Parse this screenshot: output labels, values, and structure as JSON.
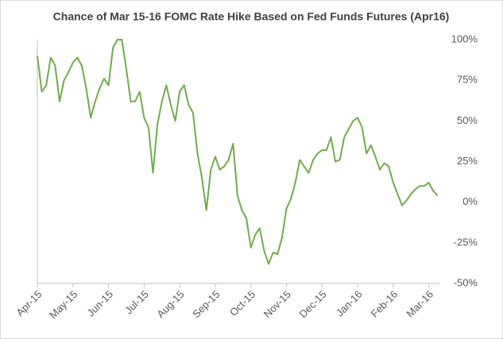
{
  "chart_data": {
    "type": "line",
    "title": "Chance of Mar 15-16 FOMC Rate Hike Based on Fed Funds Futures (Apr16)",
    "categories": [
      "Apr-15",
      null,
      null,
      null,
      null,
      null,
      null,
      null,
      "May-15",
      null,
      null,
      null,
      null,
      null,
      null,
      null,
      "Jun-15",
      null,
      null,
      null,
      null,
      null,
      null,
      null,
      "Jul-15",
      null,
      null,
      null,
      null,
      null,
      null,
      null,
      "Aug-15",
      null,
      null,
      null,
      null,
      null,
      null,
      null,
      "Sep-15",
      null,
      null,
      null,
      null,
      null,
      null,
      null,
      "Oct-15",
      null,
      null,
      null,
      null,
      null,
      null,
      null,
      "Nov-15",
      null,
      null,
      null,
      null,
      null,
      null,
      null,
      "Dec-15",
      null,
      null,
      null,
      null,
      null,
      null,
      null,
      "Jan-16",
      null,
      null,
      null,
      null,
      null,
      null,
      null,
      "Feb-16",
      null,
      null,
      null,
      null,
      null,
      null,
      null,
      "Mar-16",
      null,
      null
    ],
    "values": [
      90,
      68,
      72,
      89,
      84,
      62,
      75,
      80,
      86,
      89,
      84,
      70,
      52,
      62,
      70,
      76,
      72,
      95,
      100,
      100,
      82,
      62,
      62,
      68,
      52,
      46,
      18,
      48,
      62,
      72,
      60,
      50,
      68,
      72,
      60,
      55,
      30,
      15,
      -5,
      20,
      28,
      20,
      22,
      26,
      36,
      4,
      -5,
      -10,
      -28,
      -20,
      -16,
      -30,
      -38,
      -31,
      -32,
      -22,
      -4,
      2,
      12,
      26,
      22,
      18,
      26,
      30,
      32,
      32,
      40,
      25,
      26,
      40,
      45,
      50,
      52,
      46,
      30,
      35,
      28,
      20,
      24,
      22,
      12,
      5,
      -2,
      1,
      5,
      8,
      10,
      10,
      12,
      7,
      4
    ],
    "color": "#70ad47",
    "ylim": [
      -50,
      100
    ],
    "yticks": [
      {
        "value": 100,
        "label": "100%"
      },
      {
        "value": 75,
        "label": "75%"
      },
      {
        "value": 50,
        "label": "50%"
      },
      {
        "value": 25,
        "label": "25%"
      },
      {
        "value": 0,
        "label": "0%"
      },
      {
        "value": -25,
        "label": "-25%"
      },
      {
        "value": -50,
        "label": "-50%"
      }
    ],
    "y_axis_side": "right"
  }
}
